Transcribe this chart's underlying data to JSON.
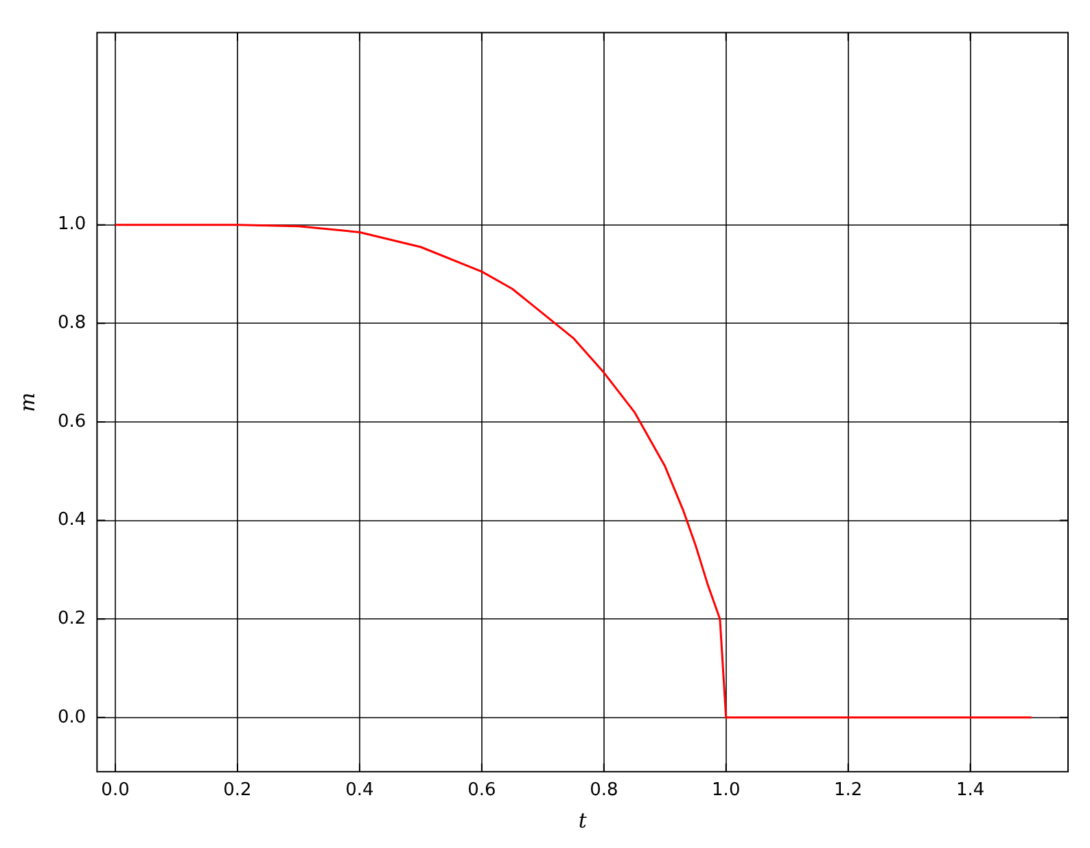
{
  "chart_data": {
    "type": "line",
    "xlabel": "t",
    "ylabel": "m",
    "x": [
      0,
      0.1,
      0.2,
      0.3,
      0.4,
      0.5,
      0.6,
      0.65,
      0.7,
      0.75,
      0.8,
      0.85,
      0.9,
      0.93,
      0.95,
      0.97,
      0.99,
      1.0,
      1.1,
      1.2,
      1.3,
      1.4,
      1.5
    ],
    "series": [
      {
        "color": "#ff0000",
        "values": [
          1,
          1,
          1,
          0.997,
          0.985,
          0.955,
          0.905,
          0.87,
          0.82,
          0.77,
          0.7,
          0.62,
          0.51,
          0.42,
          0.35,
          0.27,
          0.2,
          0,
          0,
          0,
          0,
          0,
          0
        ]
      }
    ],
    "xlim": [
      -0.03,
      1.56
    ],
    "xticks": [
      {
        "value": 0,
        "label": "0.0"
      },
      {
        "value": 0.2,
        "label": "0.2"
      },
      {
        "value": 0.4,
        "label": "0.4"
      },
      {
        "value": 0.6,
        "label": "0.6"
      },
      {
        "value": 0.8,
        "label": "0.8"
      },
      {
        "value": 1,
        "label": "1.0"
      },
      {
        "value": 1.2,
        "label": "1.2"
      },
      {
        "value": 1.4,
        "label": "1.4"
      }
    ],
    "ylim": [
      -0.11,
      1.39
    ],
    "yticks": [
      {
        "value": 0,
        "label": "0.0"
      },
      {
        "value": 0.2,
        "label": "0.2"
      },
      {
        "value": 0.4,
        "label": "0.4"
      },
      {
        "value": 0.6,
        "label": "0.6"
      },
      {
        "value": 0.8,
        "label": "0.8"
      },
      {
        "value": 1,
        "label": "1.0"
      }
    ],
    "grid": true,
    "legend": false,
    "marker": "none",
    "line_style": "solid"
  }
}
